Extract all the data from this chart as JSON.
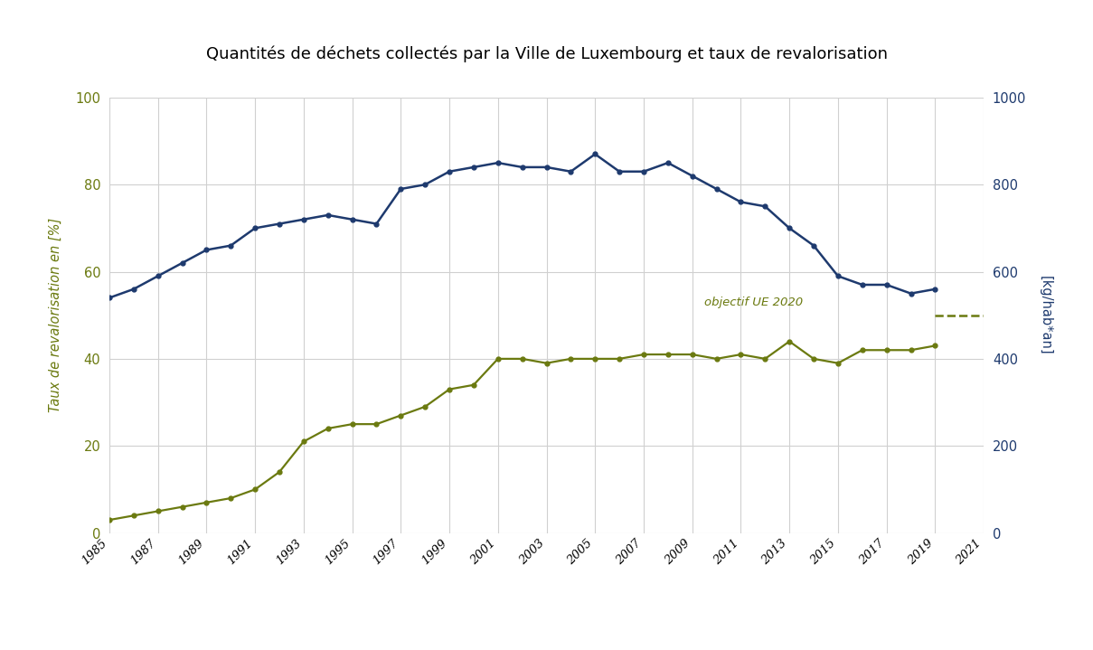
{
  "title": "Quantités de déchets collectés par la Ville de Luxembourg et taux de revalorisation",
  "ylabel_left": "Taux de revalorisation en [%]",
  "ylabel_right": "[kg/hab*an]",
  "annotation": "objectif UE 2020",
  "objectif_value": 50,
  "blue_color": "#1e3a6e",
  "green_color": "#6b7a10",
  "background_color": "#ffffff",
  "years": [
    1985,
    1986,
    1987,
    1988,
    1989,
    1990,
    1991,
    1992,
    1993,
    1994,
    1995,
    1996,
    1997,
    1998,
    1999,
    2000,
    2001,
    2002,
    2003,
    2004,
    2005,
    2006,
    2007,
    2008,
    2009,
    2010,
    2011,
    2012,
    2013,
    2014,
    2015,
    2016,
    2017,
    2018,
    2019,
    2020,
    2021
  ],
  "blue_data": [
    54,
    56,
    59,
    62,
    65,
    66,
    70,
    71,
    72,
    73,
    72,
    71,
    79,
    80,
    83,
    84,
    85,
    84,
    84,
    83,
    87,
    83,
    83,
    85,
    82,
    79,
    76,
    75,
    70,
    66,
    59,
    57,
    57,
    55,
    56,
    null,
    null
  ],
  "green_data": [
    3,
    4,
    5,
    6,
    7,
    8,
    10,
    14,
    21,
    24,
    25,
    25,
    27,
    29,
    33,
    34,
    40,
    40,
    39,
    40,
    40,
    40,
    41,
    41,
    41,
    40,
    41,
    40,
    44,
    40,
    39,
    42,
    42,
    42,
    43,
    null,
    null
  ],
  "dashed_start_year": 2019,
  "xlim_left": 1985,
  "xlim_right": 2021,
  "ylim_left": [
    0,
    100
  ],
  "ylim_right": [
    0,
    1000
  ],
  "xticks": [
    1985,
    1987,
    1989,
    1991,
    1993,
    1995,
    1997,
    1999,
    2001,
    2003,
    2005,
    2007,
    2009,
    2011,
    2013,
    2015,
    2017,
    2019,
    2021
  ],
  "yticks_left": [
    0,
    20,
    40,
    60,
    80,
    100
  ],
  "yticks_right": [
    0,
    200,
    400,
    600,
    800,
    1000
  ]
}
